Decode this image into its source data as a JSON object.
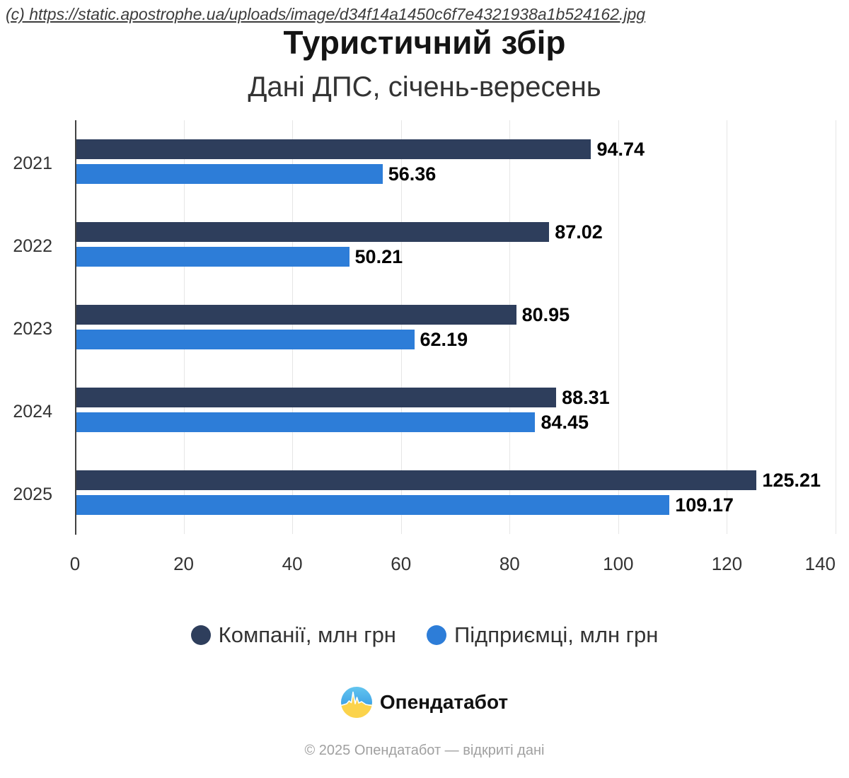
{
  "watermark": "(c) https://static.apostrophe.ua/uploads/image/d34f14a1450c6f7e4321938a1b524162.jpg",
  "title": "Туристичний збір",
  "subtitle": "Дані ДПС, січень-вересень",
  "chart_data": {
    "type": "bar",
    "orientation": "horizontal",
    "categories": [
      "2021",
      "2022",
      "2023",
      "2024",
      "2025"
    ],
    "series": [
      {
        "name": "Компанії, млн грн",
        "color": "#2e3e5c",
        "values": [
          94.74,
          87.02,
          80.95,
          88.31,
          125.21
        ]
      },
      {
        "name": "Підприємці, млн грн",
        "color": "#2d7dd8",
        "values": [
          56.36,
          50.21,
          62.19,
          84.45,
          109.17
        ]
      }
    ],
    "xlim": [
      0,
      140
    ],
    "x_ticks": [
      0,
      20,
      40,
      60,
      80,
      100,
      120,
      140
    ],
    "grid": true,
    "legend_position": "bottom",
    "value_labels": true
  },
  "brand": {
    "name": "Опендатабот"
  },
  "footer": "© 2025 Опендатабот — відкриті дані",
  "colors": {
    "grid": "#e6e6e6",
    "axis": "#424242",
    "value_label": "#000000",
    "tick_label": "#333333",
    "footer_text": "#a0a0a0"
  }
}
